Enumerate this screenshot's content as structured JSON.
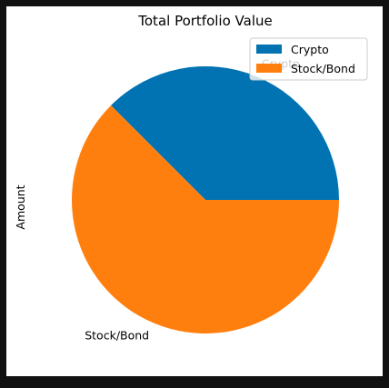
{
  "chart_data": {
    "type": "pie",
    "title": "Total Portfolio Value",
    "ylabel": "Amount",
    "xlabel": "",
    "slices": [
      {
        "label": "Crypto",
        "value": 37.5,
        "color": "#0173b2"
      },
      {
        "label": "Stock/Bond",
        "value": 62.5,
        "color": "#ff7f0e"
      }
    ],
    "start_angle_deg": 0,
    "direction": "counterclockwise",
    "legend": {
      "placement": "top-right",
      "entries": [
        "Crypto",
        "Stock/Bond"
      ]
    }
  }
}
